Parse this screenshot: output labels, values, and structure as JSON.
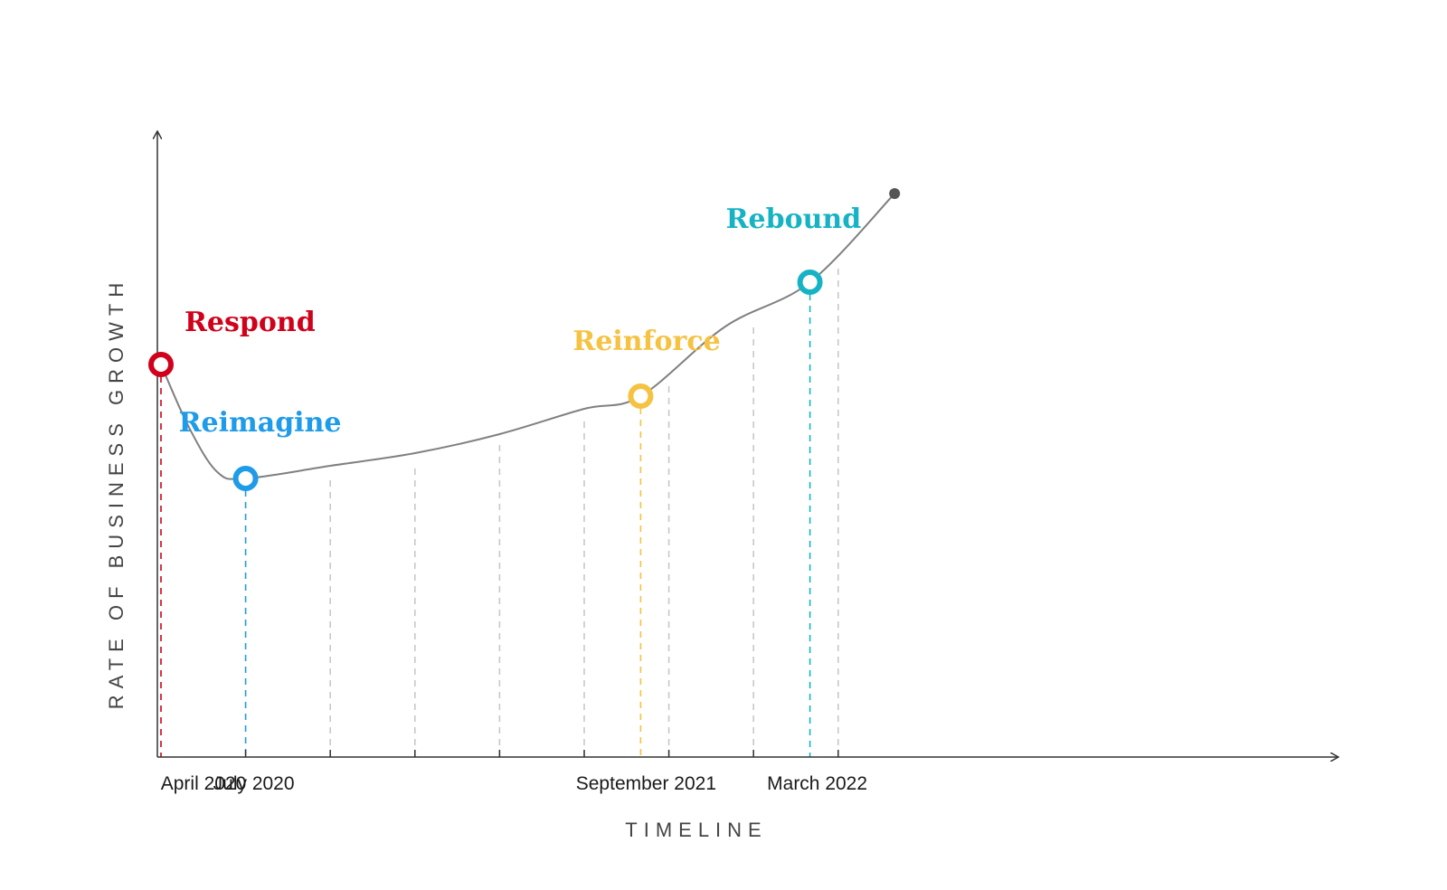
{
  "chart_data": {
    "type": "line",
    "title": "",
    "xlabel": "TIMELINE",
    "ylabel": "RATE OF BUSINESS GROWTH",
    "x_unit": "months",
    "x_range": [
      "April 2020",
      "June 2022"
    ],
    "grid": "vertical dashed lines every 3 months",
    "tick_labels": [
      "April 2020",
      "July 2020",
      "September 2021",
      "March 2022"
    ],
    "curve": [
      {
        "x": "April 2020",
        "y": 0.62
      },
      {
        "x": "May 2020",
        "y": 0.52
      },
      {
        "x": "June 2020",
        "y": 0.45
      },
      {
        "x": "July 2020",
        "y": 0.44
      },
      {
        "x": "October 2020",
        "y": 0.46
      },
      {
        "x": "January 2021",
        "y": 0.48
      },
      {
        "x": "April 2021",
        "y": 0.51
      },
      {
        "x": "July 2021",
        "y": 0.55
      },
      {
        "x": "September 2021",
        "y": 0.57
      },
      {
        "x": "December 2021",
        "y": 0.68
      },
      {
        "x": "March 2022",
        "y": 0.75
      },
      {
        "x": "June 2022",
        "y": 0.89
      }
    ],
    "milestones": [
      {
        "label": "Respond",
        "x": "April 2020",
        "y": 0.62,
        "color": "#d0021b"
      },
      {
        "label": "Reimagine",
        "x": "July 2020",
        "y": 0.44,
        "color": "#1e9be9"
      },
      {
        "label": "Reinforce",
        "x": "September 2021",
        "y": 0.57,
        "color": "#f5c242"
      },
      {
        "label": "Rebound",
        "x": "March 2022",
        "y": 0.75,
        "color": "#17b3c4"
      }
    ],
    "colors": {
      "axis": "#333333",
      "curve": "#808080",
      "grid": "#c8c8c8",
      "end_point": "#555555"
    }
  }
}
